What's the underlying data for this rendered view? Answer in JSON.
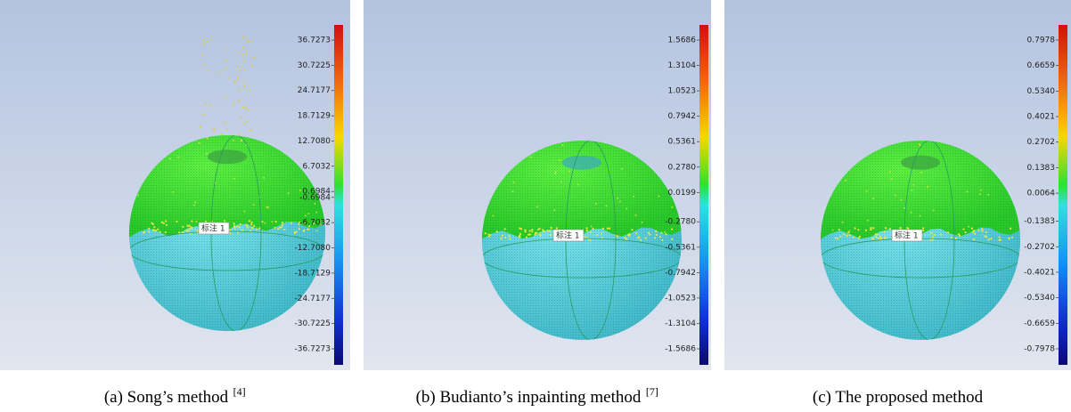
{
  "panels": [
    {
      "caption": "(a) Song’s method",
      "ref": "[4]",
      "marker_label": "标注 1",
      "scale": [
        "36.7273",
        "30.7225",
        "24.7177",
        "18.7129",
        "12.7080",
        "6.7032",
        "0.6984",
        "-0.6984",
        "-6.7032",
        "-12.7080",
        "-18.7129",
        "-24.7177",
        "-30.7225",
        "-36.7273"
      ]
    },
    {
      "caption": "(b) Budianto’s inpainting method",
      "ref": "[7]",
      "marker_label": "标注 1",
      "scale": [
        "1.5686",
        "1.3104",
        "1.0523",
        "0.7942",
        "0.5361",
        "0.2780",
        "0.0199",
        "-0.2780",
        "-0.5361",
        "-0.7942",
        "-1.0523",
        "-1.3104",
        "-1.5686"
      ]
    },
    {
      "caption": "(c) The proposed method",
      "marker_label": "标注 1",
      "scale": [
        "0.7978",
        "0.6659",
        "0.5340",
        "0.4021",
        "0.2702",
        "0.1383",
        "0.0064",
        "-0.1383",
        "-0.2702",
        "-0.4021",
        "-0.5340",
        "-0.6659",
        "-0.7978"
      ]
    }
  ]
}
